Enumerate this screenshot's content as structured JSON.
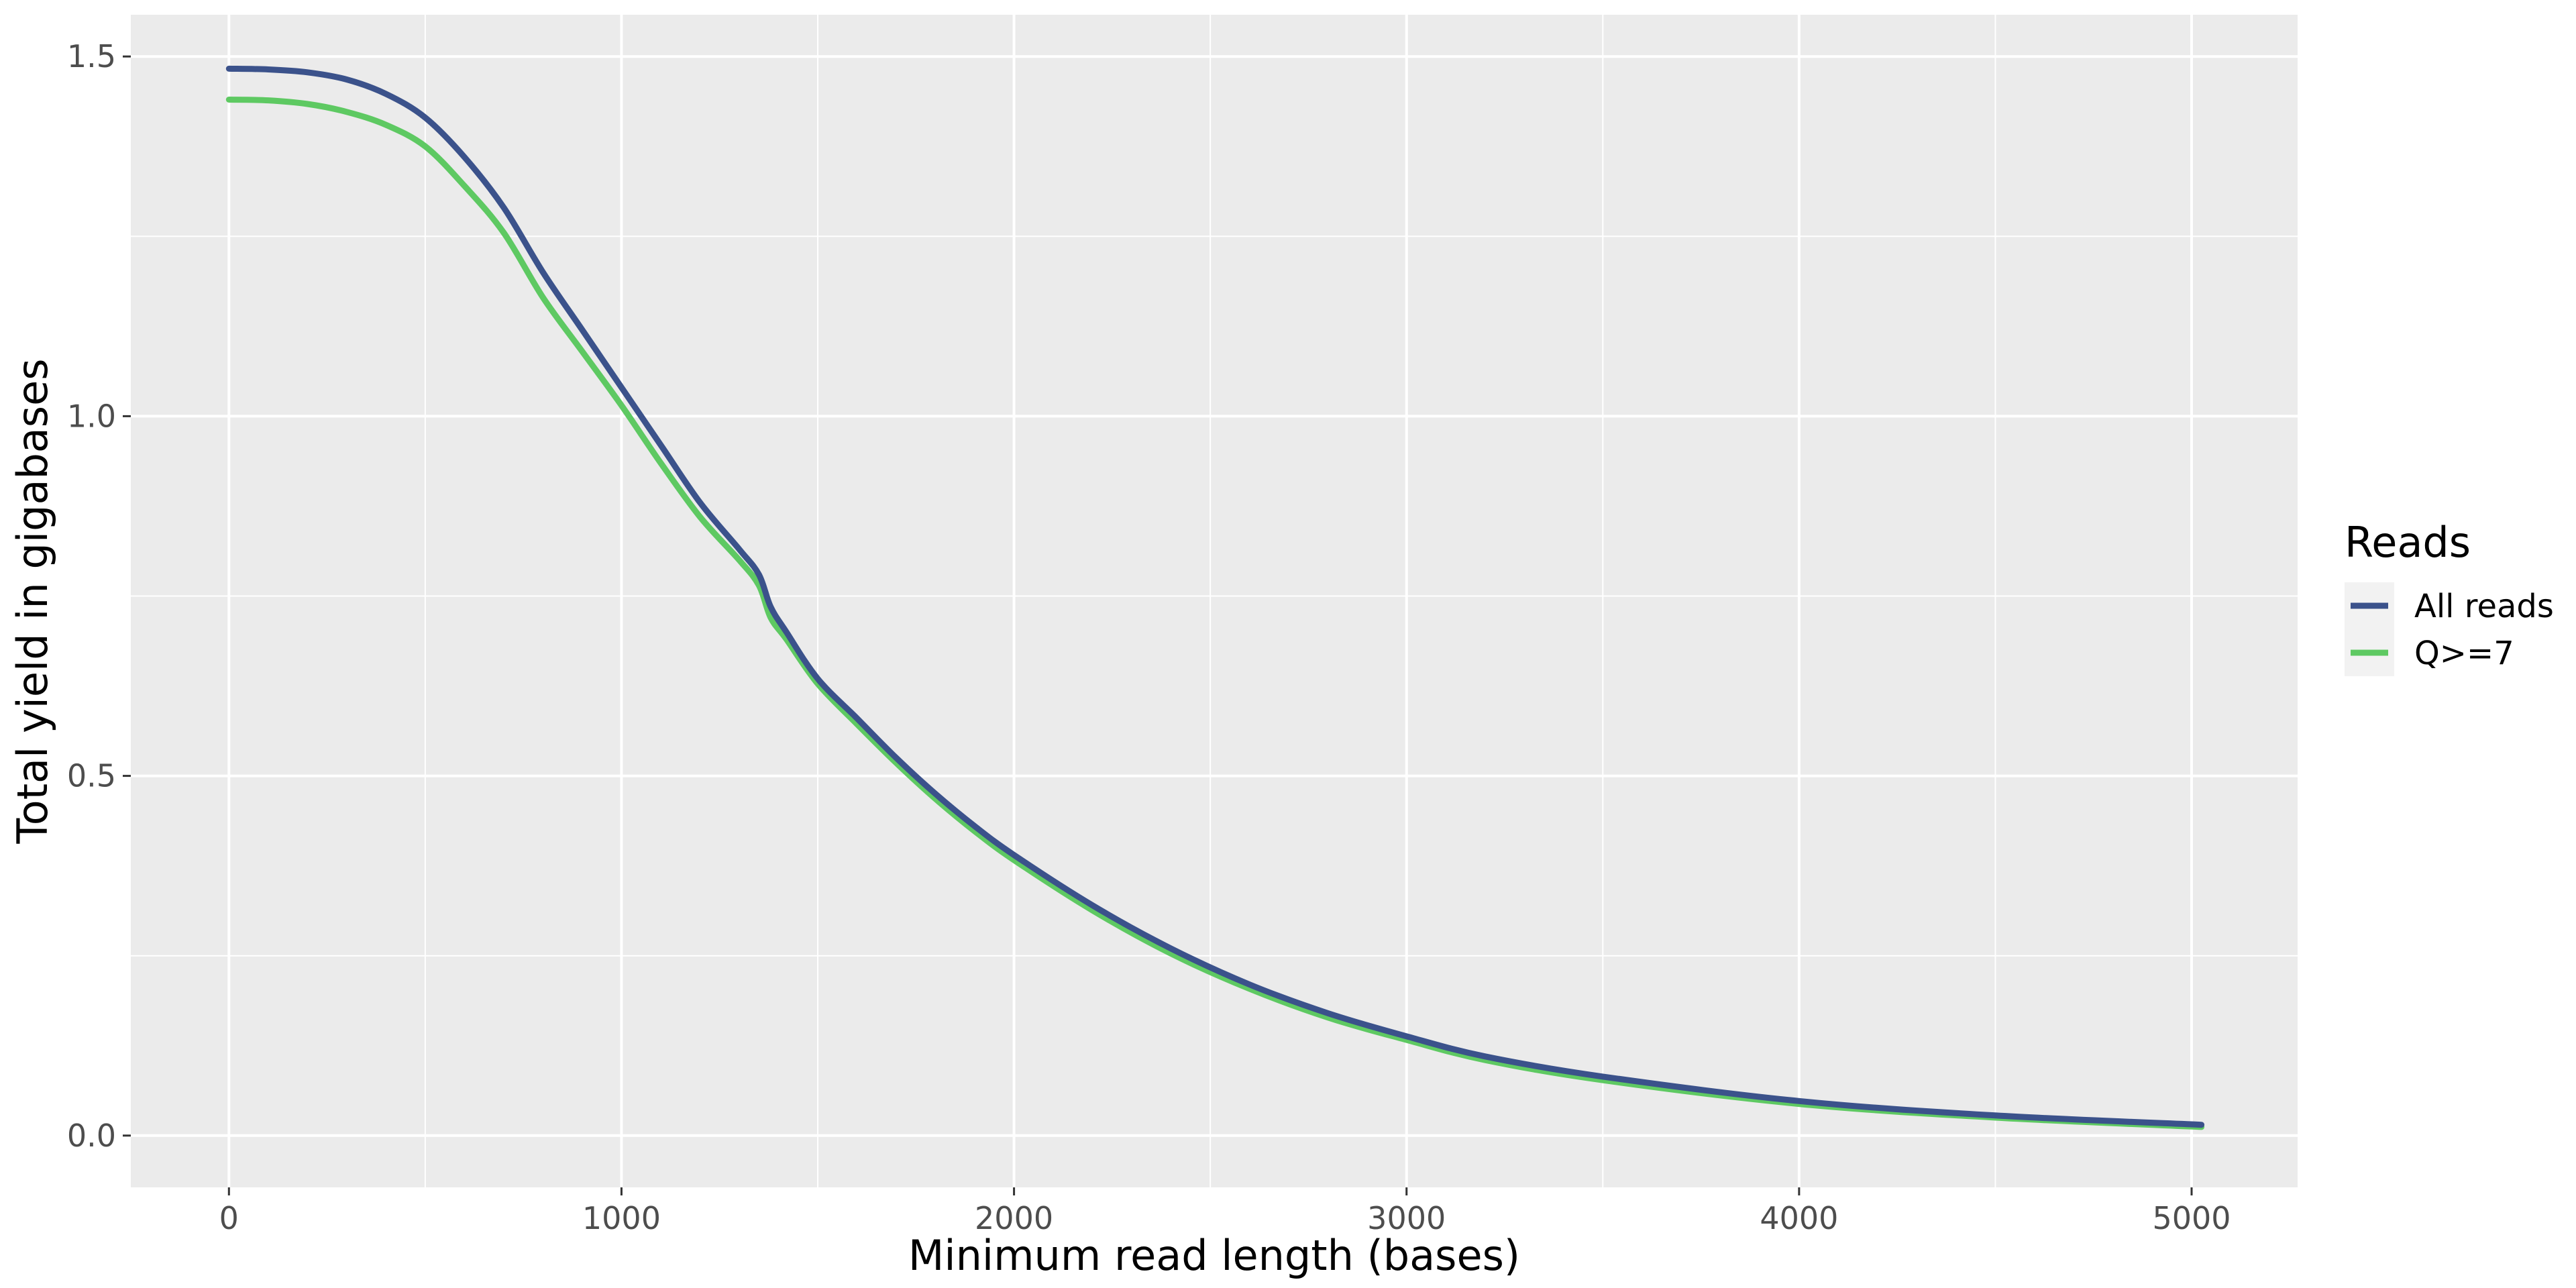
{
  "chart_data": {
    "type": "line",
    "title": "",
    "xlabel": "Minimum read length (bases)",
    "ylabel": "Total yield in gigabases",
    "xlim": [
      -250,
      5270
    ],
    "ylim": [
      -0.072,
      1.558
    ],
    "x_ticks": [
      0,
      1000,
      2000,
      3000,
      4000,
      5000
    ],
    "x_tick_labels": [
      "0",
      "1000",
      "2000",
      "3000",
      "4000",
      "5000"
    ],
    "y_ticks": [
      0.0,
      0.5,
      1.0,
      1.5
    ],
    "y_tick_labels": [
      "0.0",
      "0.5",
      "1.0",
      "1.5"
    ],
    "grid": true,
    "legend": {
      "title": "Reads",
      "position": "right"
    },
    "series": [
      {
        "name": "All reads",
        "color": "#3b528b",
        "x": [
          0,
          100,
          200,
          300,
          400,
          500,
          600,
          700,
          800,
          900,
          1000,
          1100,
          1200,
          1300,
          1350,
          1380,
          1420,
          1500,
          1600,
          1700,
          1800,
          1900,
          2000,
          2200,
          2400,
          2600,
          2800,
          3000,
          3200,
          3500,
          4000,
          4500,
          5025
        ],
        "y": [
          1.483,
          1.482,
          1.478,
          1.468,
          1.448,
          1.415,
          1.36,
          1.29,
          1.2,
          1.12,
          1.04,
          0.96,
          0.88,
          0.815,
          0.78,
          0.735,
          0.7,
          0.635,
          0.58,
          0.525,
          0.475,
          0.43,
          0.39,
          0.32,
          0.26,
          0.21,
          0.17,
          0.138,
          0.11,
          0.082,
          0.048,
          0.028,
          0.015
        ]
      },
      {
        "name": "Q>=7",
        "color": "#5ec962",
        "x": [
          0,
          100,
          200,
          300,
          400,
          500,
          600,
          700,
          800,
          900,
          1000,
          1100,
          1200,
          1300,
          1350,
          1380,
          1420,
          1500,
          1600,
          1700,
          1800,
          1900,
          2000,
          2200,
          2400,
          2600,
          2800,
          3000,
          3200,
          3500,
          4000,
          4500,
          5025
        ],
        "y": [
          1.44,
          1.439,
          1.434,
          1.423,
          1.405,
          1.375,
          1.32,
          1.255,
          1.165,
          1.09,
          1.015,
          0.935,
          0.86,
          0.8,
          0.765,
          0.72,
          0.69,
          0.628,
          0.572,
          0.518,
          0.468,
          0.423,
          0.383,
          0.313,
          0.253,
          0.204,
          0.164,
          0.133,
          0.105,
          0.077,
          0.044,
          0.025,
          0.012
        ]
      }
    ]
  }
}
